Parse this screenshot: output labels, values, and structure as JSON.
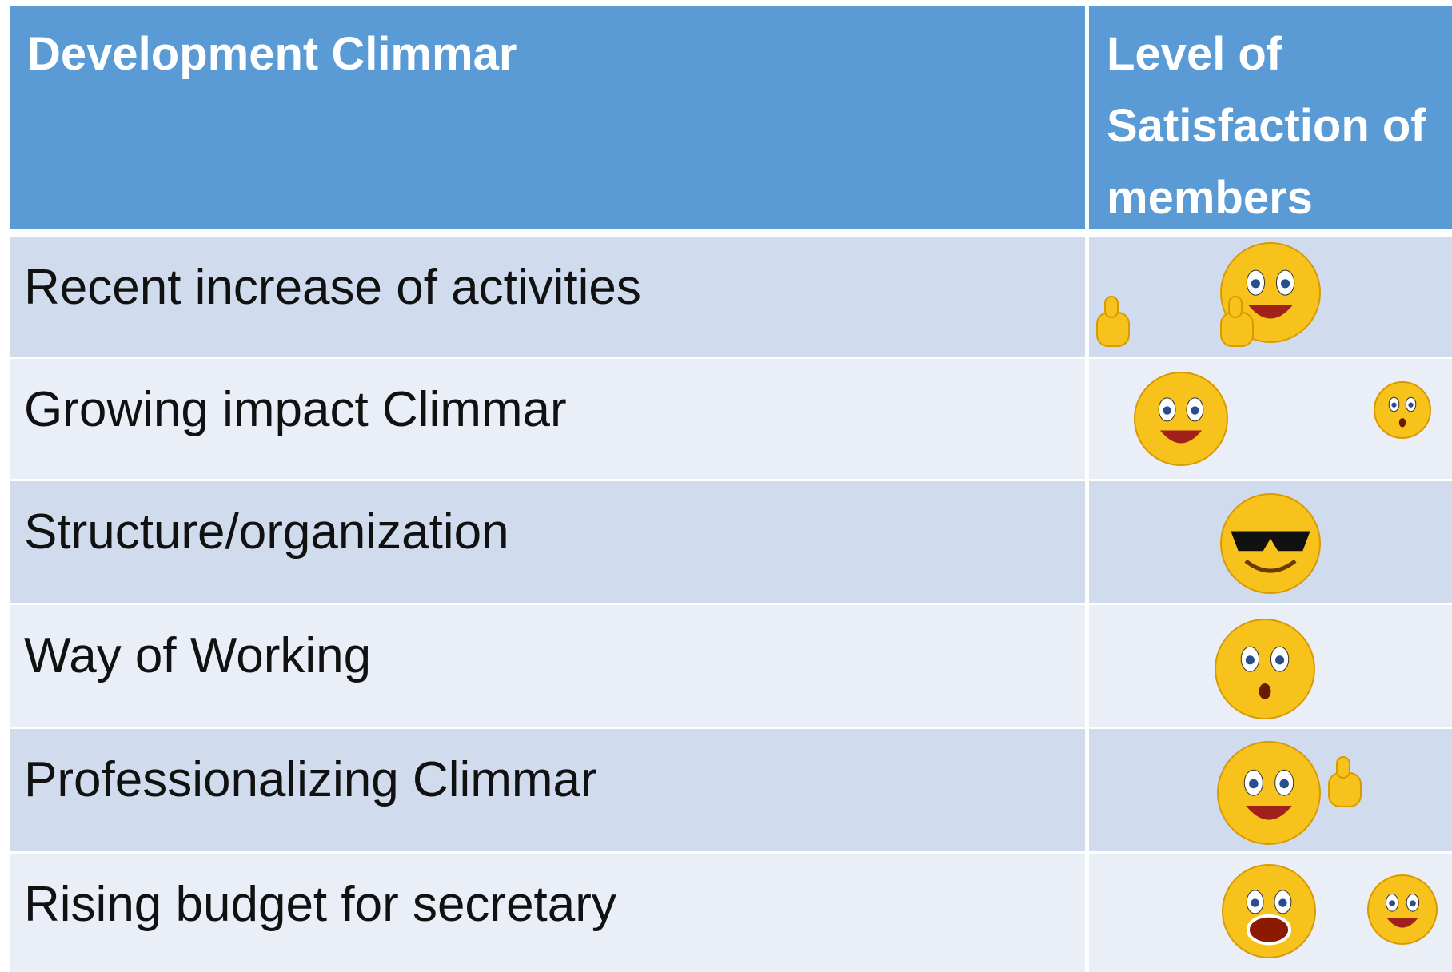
{
  "table": {
    "header": [
      "Development Climmar",
      "Level of Satisfaction of members"
    ],
    "rows": [
      "Recent increase of activities",
      "Growing impact Climmar",
      "Structure/organization",
      "Way of Working",
      "Professionalizing Climmar",
      "Rising budget for secretary"
    ]
  }
}
